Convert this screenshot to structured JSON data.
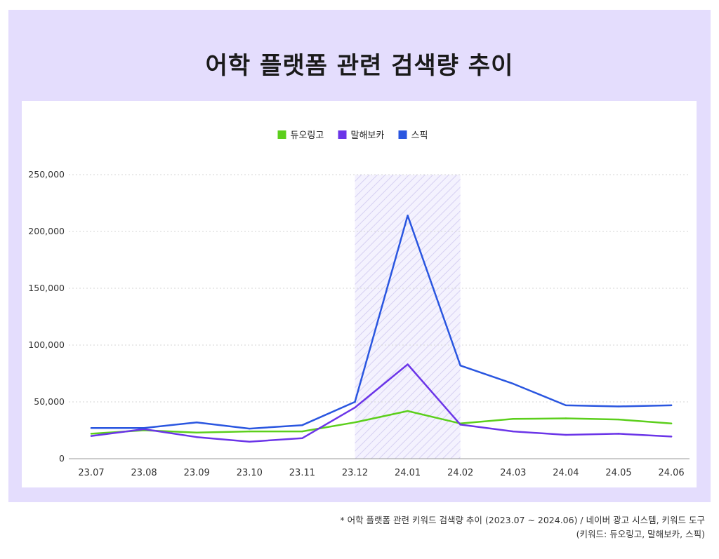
{
  "page": {
    "title": "어학 플랫폼 관련 검색량 추이",
    "footnote_line1": "* 어학 플랫폼 관련 키워드 검색량 추이 (2023.07 ~ 2024.06) / 네이버 광고 시스템, 키워드 도구",
    "footnote_line2": "(키워드: 듀오링고, 말해보카, 스픽)"
  },
  "chart_data": {
    "type": "line",
    "title": "어학 플랫폼 관련 검색량 추이",
    "xlabel": "",
    "ylabel": "",
    "categories": [
      "23.07",
      "23.08",
      "23.09",
      "23.10",
      "23.11",
      "23.12",
      "24.01",
      "24.02",
      "24.03",
      "24.04",
      "24.05",
      "24.06"
    ],
    "ylim": [
      0,
      250000
    ],
    "yticks": [
      0,
      50000,
      100000,
      150000,
      200000,
      250000
    ],
    "ytick_labels": [
      "0",
      "50,000",
      "100,000",
      "150,000",
      "200,000",
      "250,000"
    ],
    "grid": true,
    "legend_position": "top-center",
    "highlight_range": [
      "23.12",
      "24.02"
    ],
    "highlight_color": "#d8d2f5",
    "series": [
      {
        "name": "듀오링고",
        "color": "#5ccf1c",
        "values": [
          22000,
          25000,
          23000,
          24000,
          24000,
          32000,
          42000,
          31000,
          35000,
          35500,
          34500,
          31000
        ]
      },
      {
        "name": "말해보카",
        "color": "#6b35e8",
        "values": [
          20000,
          26000,
          19000,
          15000,
          18000,
          45000,
          83000,
          30000,
          24000,
          21000,
          22000,
          19500
        ]
      },
      {
        "name": "스픽",
        "color": "#2a56e0",
        "values": [
          27000,
          27000,
          32000,
          26500,
          29500,
          50000,
          214000,
          82000,
          66000,
          47000,
          46000,
          47000
        ]
      }
    ]
  }
}
